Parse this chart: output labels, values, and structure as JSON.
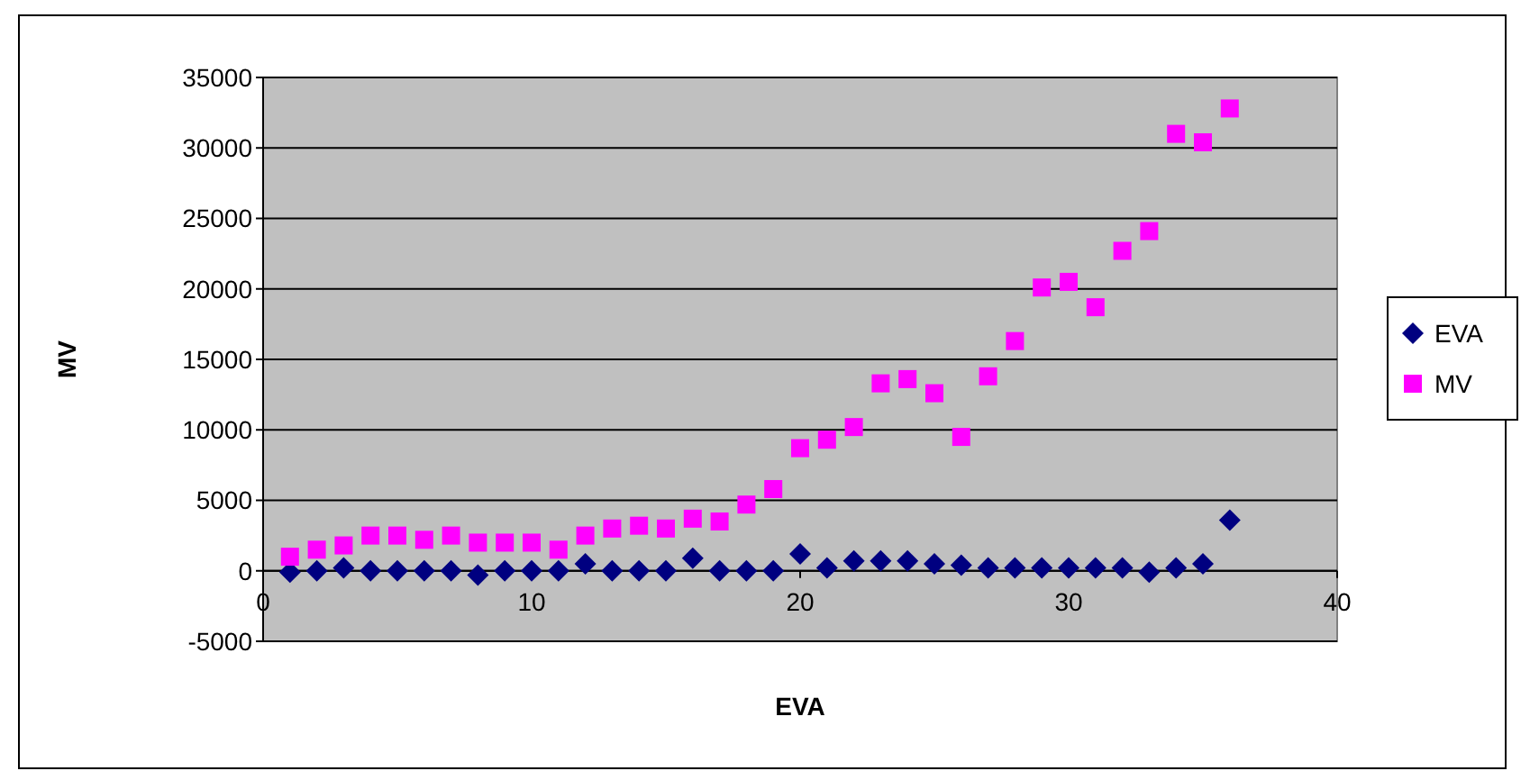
{
  "chart_data": {
    "type": "scatter",
    "xlabel": "EVA",
    "ylabel": "MV",
    "x": [
      1,
      2,
      3,
      4,
      5,
      6,
      7,
      8,
      9,
      10,
      11,
      12,
      13,
      14,
      15,
      16,
      17,
      18,
      19,
      20,
      21,
      22,
      23,
      24,
      25,
      26,
      27,
      28,
      29,
      30,
      31,
      32,
      33,
      34,
      35,
      36
    ],
    "series": [
      {
        "name": "EVA",
        "color": "#000080",
        "marker": "diamond",
        "values": [
          -100,
          0,
          200,
          0,
          0,
          0,
          0,
          -300,
          0,
          0,
          0,
          500,
          0,
          0,
          0,
          900,
          0,
          0,
          0,
          1200,
          200,
          700,
          700,
          700,
          500,
          400,
          200,
          200,
          200,
          200,
          200,
          200,
          -100,
          200,
          500,
          3600
        ]
      },
      {
        "name": "MV",
        "color": "#ff00ff",
        "marker": "square",
        "values": [
          1000,
          1500,
          1800,
          2500,
          2500,
          2200,
          2500,
          2000,
          2000,
          2000,
          1500,
          2500,
          3000,
          3200,
          3000,
          3700,
          3500,
          4700,
          5800,
          8700,
          9300,
          10200,
          13300,
          13600,
          12600,
          9500,
          13800,
          16300,
          20100,
          20500,
          18700,
          22700,
          24100,
          31000,
          30400,
          32800
        ]
      }
    ],
    "xlim": [
      0,
      40
    ],
    "xticks": [
      0,
      10,
      20,
      30,
      40
    ],
    "ylim": [
      -5000,
      35000
    ],
    "yticks": [
      -5000,
      0,
      5000,
      10000,
      15000,
      20000,
      25000,
      30000,
      35000
    ],
    "grid": "y",
    "legend": "right"
  }
}
